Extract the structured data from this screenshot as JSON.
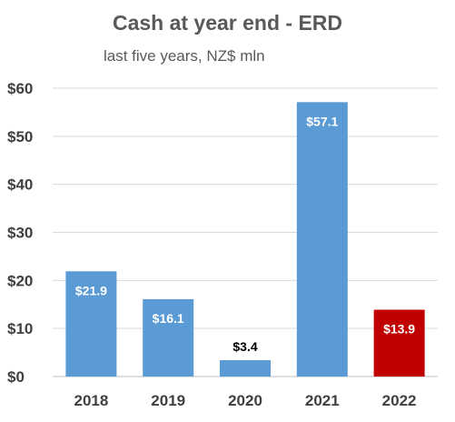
{
  "chart_data": {
    "type": "bar",
    "title": "Cash at year end - ERD",
    "subtitle": "last five years, NZ$ mln",
    "categories": [
      "2018",
      "2019",
      "2020",
      "2021",
      "2022"
    ],
    "values": [
      21.9,
      16.1,
      3.4,
      57.1,
      13.9
    ],
    "data_labels": [
      "$21.9",
      "$16.1",
      "$3.4",
      "$57.1",
      "$13.9"
    ],
    "bar_colors": [
      "#5b9bd5",
      "#5b9bd5",
      "#5b9bd5",
      "#5b9bd5",
      "#c00000"
    ],
    "label_colors": [
      "#ffffff",
      "#ffffff",
      "#000000",
      "#ffffff",
      "#ffffff"
    ],
    "label_inside": [
      true,
      true,
      false,
      true,
      true
    ],
    "yticks": [
      0,
      10,
      20,
      30,
      40,
      50,
      60
    ],
    "ytick_labels": [
      "$0",
      "$10",
      "$20",
      "$30",
      "$40",
      "$50",
      "$60"
    ],
    "ylim": [
      0,
      60
    ],
    "xlabel": "",
    "ylabel": "",
    "grid": true,
    "legend": "none"
  }
}
